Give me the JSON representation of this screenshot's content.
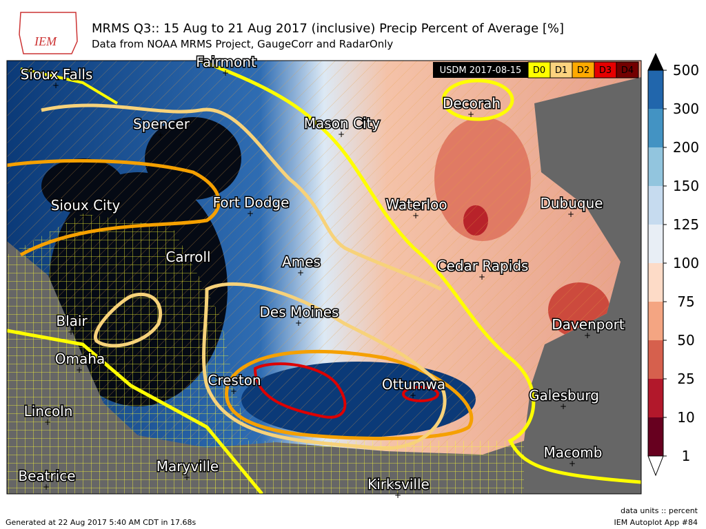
{
  "header": {
    "title": "MRMS Q3:: 15 Aug to 21 Aug 2017 (inclusive) Precip Percent of Average [%]",
    "subtitle": "Data from NOAA MRMS Project, GaugeCorr and RadarOnly",
    "logo": "IEM"
  },
  "cities": [
    "Sioux Falls",
    "Fairmont",
    "Mason City",
    "Decorah",
    "Spencer",
    "Sioux City",
    "Fort Dodge",
    "Waterloo",
    "Dubuque",
    "Carroll",
    "Ames",
    "Cedar Rapids",
    "Des Moines",
    "Blair",
    "Davenport",
    "Omaha",
    "Creston",
    "Ottumwa",
    "Galesburg",
    "Lincoln",
    "Macomb",
    "Maryville",
    "Beatrice",
    "Kirksville"
  ],
  "drought_legend": {
    "title": "USDM 2017-08-15",
    "labels": [
      "D0",
      "D1",
      "D2",
      "D3",
      "D4"
    ]
  },
  "colorbar": {
    "ticks": [
      1,
      10,
      25,
      50,
      75,
      100,
      125,
      150,
      200,
      300,
      500
    ]
  },
  "footer": {
    "generated": "Generated at 22 Aug 2017 5:40 AM CDT in 17.68s",
    "units": "data units :: percent",
    "app": "IEM Autoplot App #84"
  }
}
